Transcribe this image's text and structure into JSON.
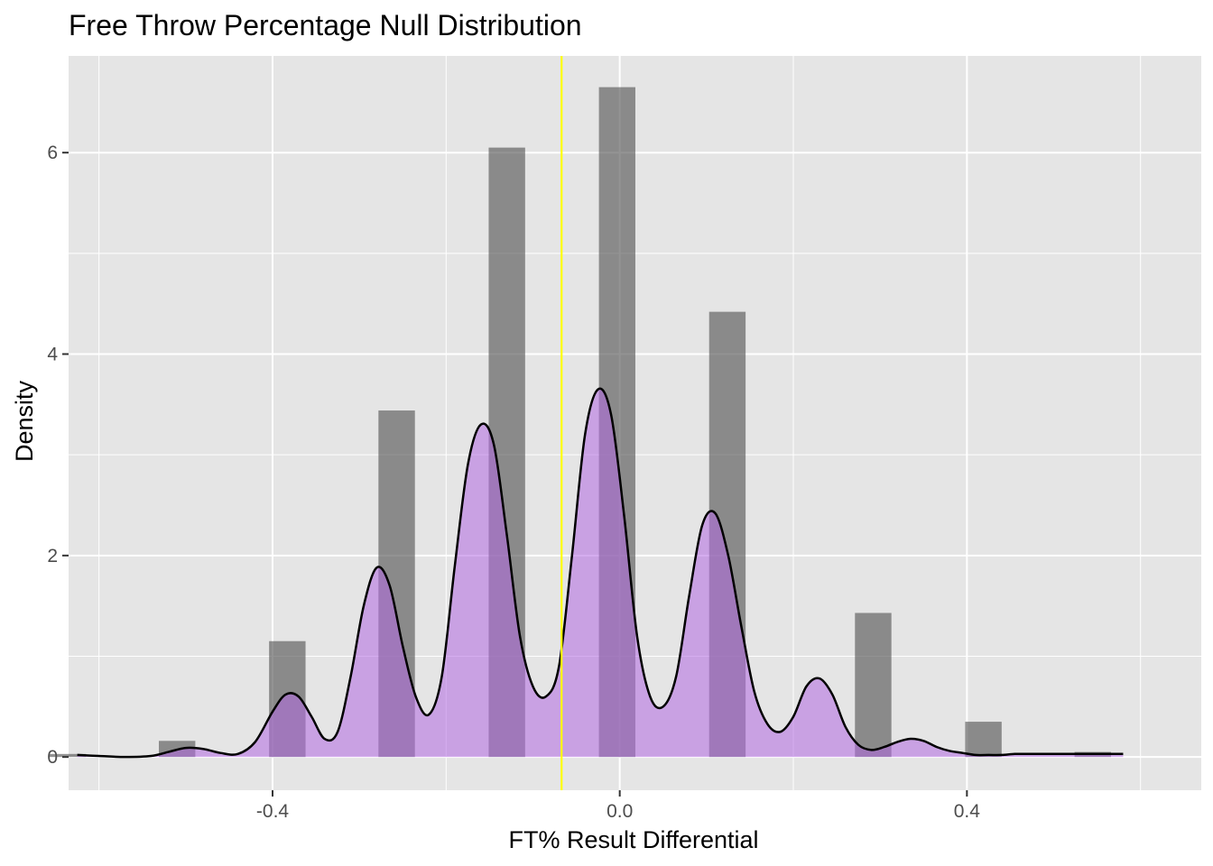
{
  "chart_data": {
    "type": "histogram",
    "title": "Free Throw Percentage Null Distribution",
    "xlabel": "FT% Result Differential",
    "ylabel": "Density",
    "xlim": [
      -0.635,
      0.67
    ],
    "ylim": [
      -0.33,
      6.96
    ],
    "x_ticks": [
      -0.4,
      0.0,
      0.4
    ],
    "x_tick_labels": [
      "-0.4",
      "0.0",
      "0.4"
    ],
    "y_ticks": [
      0,
      2,
      4,
      6
    ],
    "y_tick_labels": [
      "0",
      "2",
      "4",
      "6"
    ],
    "grid": true,
    "bin_width": 0.042,
    "histogram_bins": [
      {
        "center": -0.636,
        "density": 0.03
      },
      {
        "center": -0.51,
        "density": 0.16
      },
      {
        "center": -0.383,
        "density": 1.15
      },
      {
        "center": -0.257,
        "density": 3.44
      },
      {
        "center": -0.13,
        "density": 6.05
      },
      {
        "center": -0.003,
        "density": 6.65
      },
      {
        "center": 0.124,
        "density": 4.42
      },
      {
        "center": 0.292,
        "density": 1.43
      },
      {
        "center": 0.419,
        "density": 0.35
      },
      {
        "center": 0.545,
        "density": 0.05
      }
    ],
    "density_curve": {
      "x": [
        -0.625,
        -0.6,
        -0.57,
        -0.54,
        -0.52,
        -0.5,
        -0.48,
        -0.46,
        -0.44,
        -0.42,
        -0.4,
        -0.385,
        -0.37,
        -0.355,
        -0.34,
        -0.325,
        -0.31,
        -0.295,
        -0.28,
        -0.265,
        -0.25,
        -0.235,
        -0.22,
        -0.205,
        -0.19,
        -0.175,
        -0.16,
        -0.145,
        -0.13,
        -0.115,
        -0.1,
        -0.085,
        -0.07,
        -0.055,
        -0.04,
        -0.025,
        -0.01,
        0.005,
        0.02,
        0.035,
        0.05,
        0.065,
        0.08,
        0.095,
        0.11,
        0.125,
        0.14,
        0.155,
        0.17,
        0.185,
        0.2,
        0.215,
        0.23,
        0.245,
        0.26,
        0.275,
        0.29,
        0.305,
        0.32,
        0.335,
        0.35,
        0.365,
        0.38,
        0.395,
        0.41,
        0.425,
        0.44,
        0.455,
        0.47,
        0.485,
        0.5,
        0.515,
        0.53,
        0.55,
        0.58
      ],
      "y": [
        0.02,
        0.01,
        0.0,
        0.01,
        0.05,
        0.09,
        0.08,
        0.04,
        0.03,
        0.15,
        0.45,
        0.62,
        0.6,
        0.4,
        0.18,
        0.25,
        0.8,
        1.5,
        1.88,
        1.7,
        1.1,
        0.6,
        0.42,
        0.8,
        1.9,
        2.9,
        3.3,
        3.1,
        2.2,
        1.2,
        0.7,
        0.6,
        0.9,
        2.0,
        3.2,
        3.65,
        3.4,
        2.4,
        1.2,
        0.6,
        0.5,
        0.8,
        1.6,
        2.3,
        2.42,
        2.0,
        1.3,
        0.65,
        0.33,
        0.25,
        0.4,
        0.7,
        0.78,
        0.62,
        0.3,
        0.12,
        0.07,
        0.1,
        0.15,
        0.18,
        0.16,
        0.1,
        0.06,
        0.04,
        0.02,
        0.02,
        0.02,
        0.03,
        0.03,
        0.03,
        0.03,
        0.03,
        0.03,
        0.03,
        0.03
      ]
    },
    "reference_line": {
      "x": -0.067
    },
    "colors": {
      "panel_background": "#e5e5e5",
      "grid_major": "#ffffff",
      "bar_fill": "#595959",
      "bar_opacity": 0.65,
      "density_fill": "#b36ae2",
      "density_opacity": 0.55,
      "density_line": "#000000",
      "reference_line": "#ffff00"
    }
  }
}
